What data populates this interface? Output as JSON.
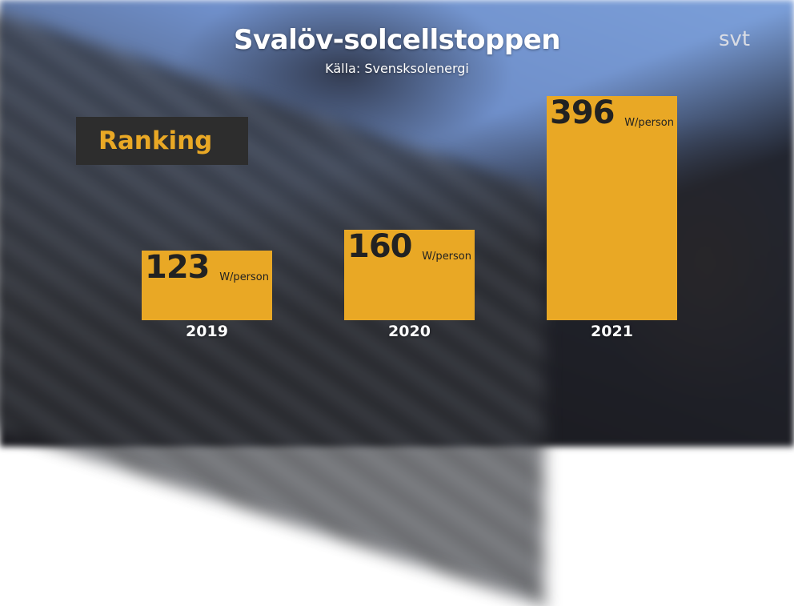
{
  "header": {
    "title": "Svalöv-solcellstoppen",
    "source": "Källa: Svensksolenergi",
    "logo": "svt"
  },
  "label": "Ranking",
  "colors": {
    "bar": "#e9a825",
    "label_bg": "#2d2d2d"
  },
  "chart_data": {
    "type": "bar",
    "categories": [
      "2019",
      "2020",
      "2021"
    ],
    "values": [
      123,
      160,
      396
    ],
    "unit": "W/person",
    "title": "Svalöv-solcellstoppen",
    "subtitle": "Källa: Svensksolenergi"
  }
}
